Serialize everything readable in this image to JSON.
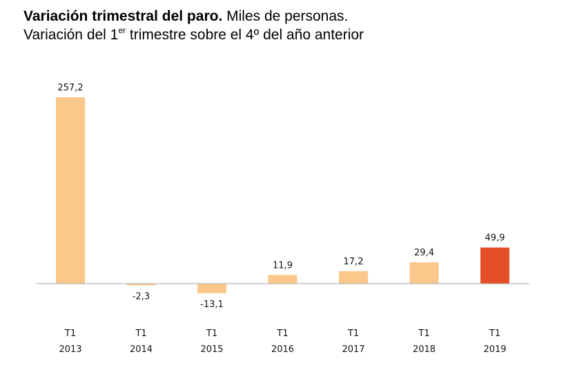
{
  "title": {
    "bold": "Variación trimestral del paro.",
    "normal": " Miles de personas.",
    "line2_pre": "Variación del 1",
    "line2_sup": "er",
    "line2_post": " trimestre sobre el 4º del año anterior"
  },
  "colors": {
    "bar": "#FCC78A",
    "highlight": "#E34E26",
    "axis": "#A6A6A6"
  },
  "chart_data": {
    "type": "bar",
    "title": "Variación trimestral del paro. Miles de personas.",
    "subtitle": "Variación del 1er trimestre sobre el 4º del año anterior",
    "categories": [
      [
        "T1",
        "2013"
      ],
      [
        "T1",
        "2014"
      ],
      [
        "T1",
        "2015"
      ],
      [
        "T1",
        "2016"
      ],
      [
        "T1",
        "2017"
      ],
      [
        "T1",
        "2018"
      ],
      [
        "T1",
        "2019"
      ]
    ],
    "values": [
      257.2,
      -2.3,
      -13.1,
      11.9,
      17.2,
      29.4,
      49.9
    ],
    "data_labels": [
      "257,2",
      "-2,3",
      "-13,1",
      "11,9",
      "17,2",
      "29,4",
      "49,9"
    ],
    "highlight_index": 6,
    "xlabel": "",
    "ylabel": "",
    "grid": false
  }
}
